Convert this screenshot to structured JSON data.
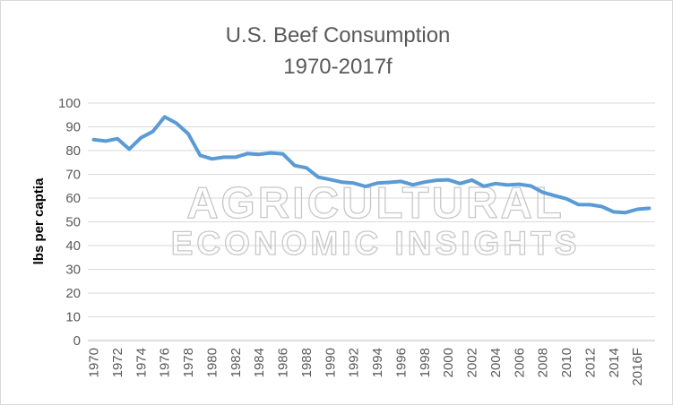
{
  "chart_data": {
    "type": "line",
    "title": "U.S. Beef Consumption",
    "subtitle": "1970-2017f",
    "xlabel": "",
    "ylabel": "lbs per captia",
    "ylim": [
      0,
      100
    ],
    "yticks": [
      0,
      10,
      20,
      30,
      40,
      50,
      60,
      70,
      80,
      90,
      100
    ],
    "grid": true,
    "legend": "none",
    "x": [
      "1970",
      "1971",
      "1972",
      "1973",
      "1974",
      "1975",
      "1976",
      "1977",
      "1978",
      "1979",
      "1980",
      "1981",
      "1982",
      "1983",
      "1984",
      "1985",
      "1986",
      "1987",
      "1988",
      "1989",
      "1990",
      "1991",
      "1992",
      "1993",
      "1994",
      "1995",
      "1996",
      "1997",
      "1998",
      "1999",
      "2000",
      "2001",
      "2002",
      "2003",
      "2004",
      "2005",
      "2006",
      "2007",
      "2008",
      "2009",
      "2010",
      "2011",
      "2012",
      "2013",
      "2014",
      "2015",
      "2016F",
      "2017F"
    ],
    "xtick_labels": [
      "1970",
      "1972",
      "1974",
      "1976",
      "1978",
      "1980",
      "1982",
      "1984",
      "1986",
      "1988",
      "1990",
      "1992",
      "1994",
      "1996",
      "1998",
      "2000",
      "2002",
      "2004",
      "2006",
      "2008",
      "2010",
      "2012",
      "2014",
      "2016F"
    ],
    "series": [
      {
        "name": "",
        "color": "#5b9bd5",
        "values": [
          84.6,
          84.0,
          85.0,
          80.6,
          85.4,
          88.0,
          94.2,
          91.5,
          87.0,
          78.0,
          76.5,
          77.2,
          77.2,
          78.7,
          78.4,
          79.0,
          78.6,
          73.7,
          72.7,
          68.8,
          67.8,
          66.7,
          66.3,
          64.9,
          66.3,
          66.6,
          67.0,
          65.6,
          66.7,
          67.5,
          67.7,
          66.1,
          67.6,
          65.0,
          66.1,
          65.5,
          65.8,
          65.1,
          62.4,
          61.0,
          59.7,
          57.3,
          57.2,
          56.4,
          54.2,
          53.9,
          55.3,
          55.7
        ]
      }
    ],
    "watermark": [
      "AGRICULTURAL",
      "ECONOMIC INSIGHTS"
    ]
  }
}
